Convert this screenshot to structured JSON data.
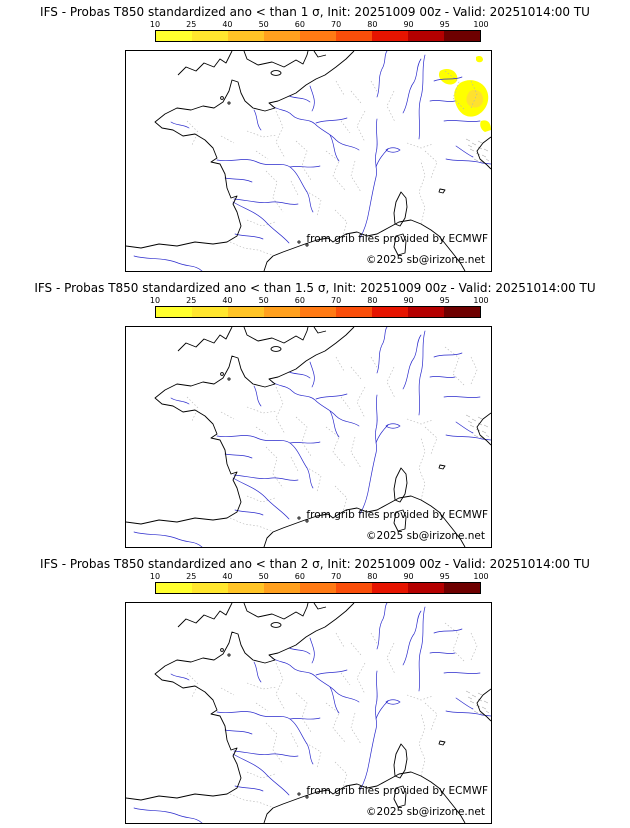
{
  "panels": [
    {
      "title": "IFS - Probas T850  standardized ano < than 1 σ, Init: 20251009 00z - Valid: 20251014:00 TU",
      "has_highlight": true
    },
    {
      "title": "IFS - Probas T850  standardized ano < than 1.5 σ, Init: 20251009 00z - Valid: 20251014:00 TU",
      "has_highlight": false
    },
    {
      "title": "IFS - Probas T850  standardized ano < than 2 σ, Init: 20251009 00z - Valid: 20251014:00 TU",
      "has_highlight": false
    }
  ],
  "colorbar": {
    "ticks": [
      "10",
      "25",
      "40",
      "50",
      "60",
      "70",
      "80",
      "90",
      "95",
      "100"
    ],
    "segment_colors": [
      "#ffff2e",
      "#ffe62e",
      "#ffc426",
      "#ffa01e",
      "#ff7a14",
      "#fa4e0a",
      "#e61400",
      "#b40000",
      "#6e0000"
    ]
  },
  "map": {
    "credit": "from grib files provided by ECMWF",
    "copyright": "©2025 sb@irizone.net",
    "coast_color": "#000000",
    "river_color": "#2929cc",
    "boundary_color": "#b3b3b3",
    "highlight_color": "#ffff00"
  }
}
